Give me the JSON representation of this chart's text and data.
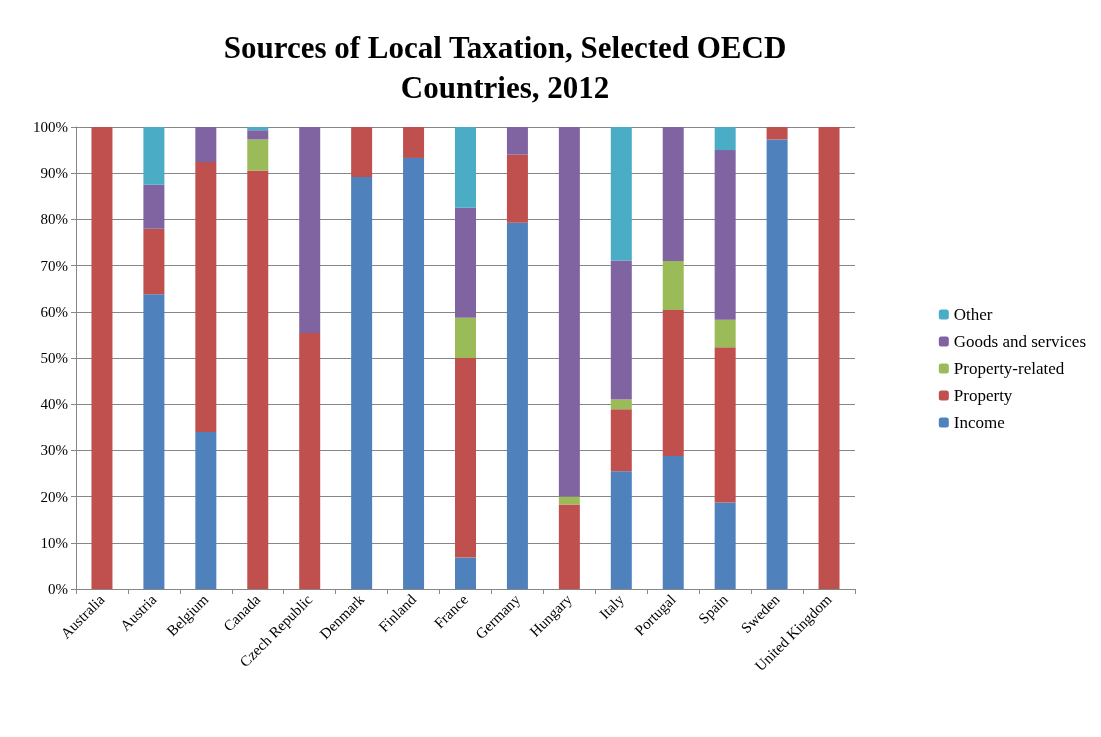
{
  "chart_data": {
    "type": "bar",
    "stacked": true,
    "title": "Sources of Local Taxation, Selected OECD\nCountries, 2012",
    "categories": [
      "Australia",
      "Austria",
      "Belgium",
      "Canada",
      "Czech Republic",
      "Denmark",
      "Finland",
      "France",
      "Germany",
      "Hungary",
      "Italy",
      "Portugal",
      "Spain",
      "Sweden",
      "United Kingdom"
    ],
    "series": [
      {
        "name": "Income",
        "color": "#4f81bd",
        "values": [
          0,
          63.8,
          34.0,
          0,
          0,
          89.2,
          93.3,
          6.8,
          79.3,
          0,
          25.5,
          28.8,
          18.7,
          97.3,
          0
        ]
      },
      {
        "name": "Property",
        "color": "#c0504d",
        "values": [
          100,
          14.2,
          58.4,
          90.6,
          55.4,
          10.8,
          6.7,
          43.2,
          14.7,
          18.3,
          13.4,
          31.6,
          33.6,
          2.7,
          100
        ]
      },
      {
        "name": "Property-related",
        "color": "#9bbb59",
        "values": [
          0,
          0,
          0,
          6.7,
          0,
          0,
          0,
          8.7,
          0,
          1.7,
          2.1,
          10.6,
          6.0,
          0,
          0
        ]
      },
      {
        "name": "Goods and services",
        "color": "#8064a2",
        "values": [
          0,
          9.5,
          7.6,
          2.0,
          44.6,
          0,
          0,
          23.8,
          6.0,
          80.0,
          30.1,
          29.0,
          36.7,
          0,
          0
        ]
      },
      {
        "name": "Other",
        "color": "#4bacc6",
        "values": [
          0,
          12.5,
          0,
          0.7,
          0,
          0,
          0,
          17.5,
          0,
          0,
          28.9,
          0,
          5.0,
          0,
          0
        ]
      }
    ],
    "ylim": [
      0,
      100
    ],
    "yticks": [
      {
        "value": 0,
        "label": "0%"
      },
      {
        "value": 10,
        "label": "10%"
      },
      {
        "value": 20,
        "label": "20%"
      },
      {
        "value": 30,
        "label": "30%"
      },
      {
        "value": 40,
        "label": "40%"
      },
      {
        "value": 50,
        "label": "50%"
      },
      {
        "value": 60,
        "label": "60%"
      },
      {
        "value": 70,
        "label": "70%"
      },
      {
        "value": 80,
        "label": "80%"
      },
      {
        "value": 90,
        "label": "90%"
      },
      {
        "value": 100,
        "label": "100%"
      }
    ],
    "grid": "y",
    "legend": "right"
  }
}
